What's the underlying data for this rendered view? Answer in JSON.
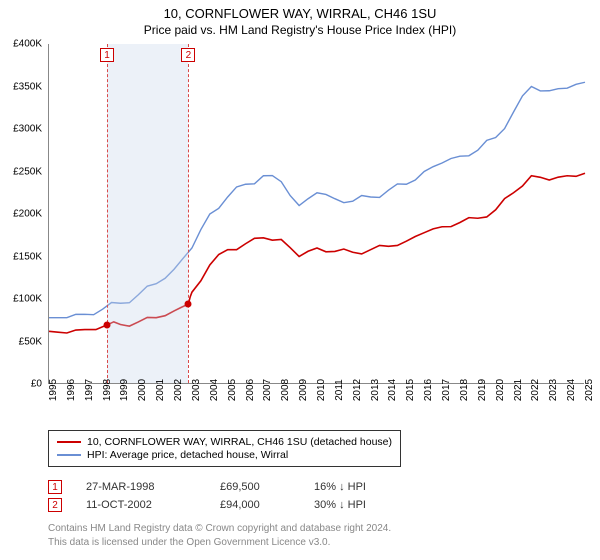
{
  "title": "10, CORNFLOWER WAY, WIRRAL, CH46 1SU",
  "subtitle": "Price paid vs. HM Land Registry's House Price Index (HPI)",
  "chart": {
    "type": "line",
    "background_color": "#ffffff",
    "axis_color": "#888888",
    "text_color": "#000000",
    "x_min": 1995,
    "x_max": 2025,
    "x_tick_step": 1,
    "x_ticks": [
      1995,
      1996,
      1997,
      1998,
      1999,
      2000,
      2001,
      2002,
      2003,
      2004,
      2005,
      2006,
      2007,
      2008,
      2009,
      2010,
      2011,
      2012,
      2013,
      2014,
      2015,
      2016,
      2017,
      2018,
      2019,
      2020,
      2021,
      2022,
      2023,
      2024,
      2025
    ],
    "y_min": 0,
    "y_max": 400000,
    "y_tick_step": 50000,
    "y_ticks": [
      0,
      50000,
      100000,
      150000,
      200000,
      250000,
      300000,
      350000,
      400000
    ],
    "y_tick_labels": [
      "£0",
      "£50K",
      "£100K",
      "£150K",
      "£200K",
      "£250K",
      "£300K",
      "£350K",
      "£400K"
    ],
    "shade_band": {
      "x_start": 1998.25,
      "x_end": 2002.8,
      "color": "rgba(200,215,235,0.35)"
    },
    "sale_markers": [
      {
        "label": "1",
        "x": 1998.25,
        "y": 69500,
        "dash_color": "#d94a4a",
        "dot_color": "#cc0000"
      },
      {
        "label": "2",
        "x": 2002.8,
        "y": 94000,
        "dash_color": "#d94a4a",
        "dot_color": "#cc0000"
      }
    ],
    "series": [
      {
        "name": "price_paid",
        "label": "10, CORNFLOWER WAY, WIRRAL, CH46 1SU (detached house)",
        "color": "#cc0000",
        "line_width": 1.6,
        "points": [
          [
            1995,
            62000
          ],
          [
            1996,
            60000
          ],
          [
            1997,
            64000
          ],
          [
            1998.25,
            69500
          ],
          [
            1999,
            70000
          ],
          [
            2000,
            73000
          ],
          [
            2001,
            78000
          ],
          [
            2002,
            86000
          ],
          [
            2002.8,
            94000
          ],
          [
            2003,
            108000
          ],
          [
            2004,
            140000
          ],
          [
            2005,
            158000
          ],
          [
            2006,
            165000
          ],
          [
            2007,
            172000
          ],
          [
            2008,
            170000
          ],
          [
            2009,
            150000
          ],
          [
            2010,
            160000
          ],
          [
            2011,
            156000
          ],
          [
            2012,
            155000
          ],
          [
            2013,
            158000
          ],
          [
            2014,
            162000
          ],
          [
            2015,
            168000
          ],
          [
            2016,
            178000
          ],
          [
            2017,
            185000
          ],
          [
            2018,
            190000
          ],
          [
            2019,
            195000
          ],
          [
            2020,
            205000
          ],
          [
            2021,
            225000
          ],
          [
            2022,
            245000
          ],
          [
            2023,
            240000
          ],
          [
            2024,
            245000
          ],
          [
            2025,
            248000
          ]
        ]
      },
      {
        "name": "hpi",
        "label": "HPI: Average price, detached house, Wirral",
        "color": "#6a8fd4",
        "line_width": 1.4,
        "points": [
          [
            1995,
            78000
          ],
          [
            1996,
            78000
          ],
          [
            1997,
            82000
          ],
          [
            1998,
            88000
          ],
          [
            1999,
            95000
          ],
          [
            2000,
            105000
          ],
          [
            2001,
            118000
          ],
          [
            2002,
            135000
          ],
          [
            2003,
            160000
          ],
          [
            2004,
            200000
          ],
          [
            2005,
            220000
          ],
          [
            2006,
            235000
          ],
          [
            2007,
            245000
          ],
          [
            2008,
            238000
          ],
          [
            2009,
            210000
          ],
          [
            2010,
            225000
          ],
          [
            2011,
            218000
          ],
          [
            2012,
            215000
          ],
          [
            2013,
            220000
          ],
          [
            2014,
            228000
          ],
          [
            2015,
            235000
          ],
          [
            2016,
            250000
          ],
          [
            2017,
            260000
          ],
          [
            2018,
            268000
          ],
          [
            2019,
            275000
          ],
          [
            2020,
            290000
          ],
          [
            2021,
            320000
          ],
          [
            2022,
            350000
          ],
          [
            2023,
            345000
          ],
          [
            2024,
            348000
          ],
          [
            2025,
            355000
          ]
        ]
      }
    ]
  },
  "legend": {
    "border_color": "#333333",
    "rows": [
      {
        "color": "#cc0000",
        "label": "10, CORNFLOWER WAY, WIRRAL, CH46 1SU (detached house)"
      },
      {
        "color": "#6a8fd4",
        "label": "HPI: Average price, detached house, Wirral"
      }
    ]
  },
  "sales_table": {
    "rows": [
      {
        "marker": "1",
        "date": "27-MAR-1998",
        "price": "£69,500",
        "diff": "16% ↓ HPI"
      },
      {
        "marker": "2",
        "date": "11-OCT-2002",
        "price": "£94,000",
        "diff": "30% ↓ HPI"
      }
    ]
  },
  "footer": {
    "line1": "Contains HM Land Registry data © Crown copyright and database right 2024.",
    "line2": "This data is licensed under the Open Government Licence v3.0."
  }
}
